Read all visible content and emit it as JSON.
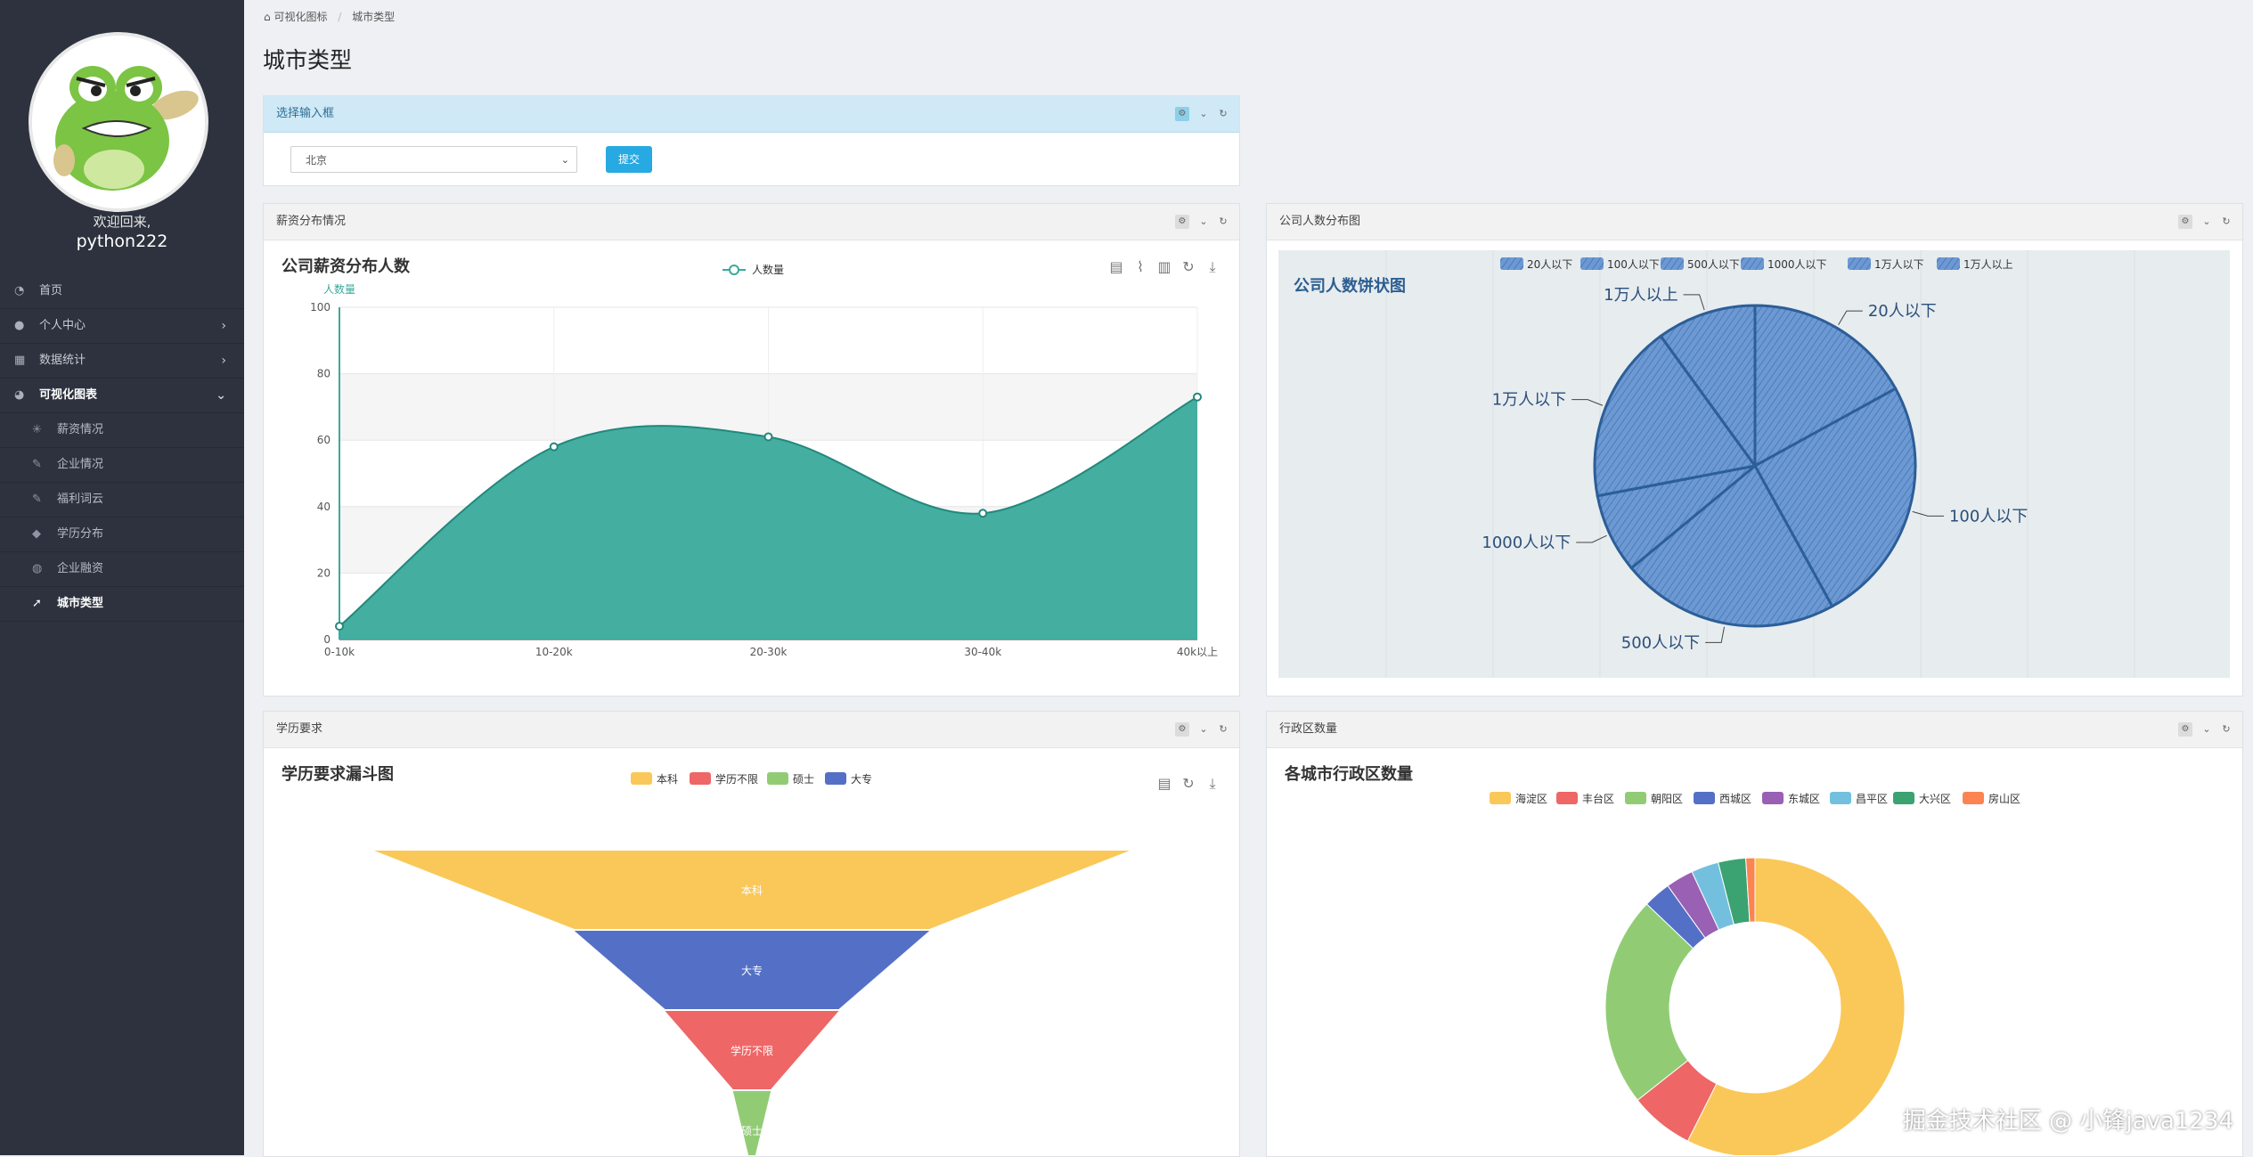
{
  "sidebar": {
    "welcome": "欢迎回来,",
    "username": "python222",
    "items": [
      {
        "label": "首页",
        "icon": "dashboard-icon"
      },
      {
        "label": "个人中心",
        "icon": "user-icon"
      },
      {
        "label": "数据统计",
        "icon": "grid-icon"
      },
      {
        "label": "可视化图表",
        "icon": "pie-icon"
      }
    ],
    "subitems": [
      {
        "label": "薪资情况",
        "icon": "asterisk-icon"
      },
      {
        "label": "企业情况",
        "icon": "feather-icon"
      },
      {
        "label": "福利词云",
        "icon": "feather-icon"
      },
      {
        "label": "学历分布",
        "icon": "graduation-cap-icon"
      },
      {
        "label": "企业融资",
        "icon": "globe-icon"
      },
      {
        "label": "城市类型",
        "icon": "rocket-icon"
      }
    ]
  },
  "breadcrumb": {
    "home": "可视化图标",
    "current": "城市类型"
  },
  "page_title": "城市类型",
  "select_panel": {
    "title": "选择输入框",
    "selected": "北京",
    "submit": "提交"
  },
  "panels": {
    "salary": "薪资分布情况",
    "company": "公司人数分布图",
    "education": "学历要求",
    "district": "行政区数量"
  },
  "watermark": "掘金技术社区 @ 小锋java1234",
  "colors": {
    "sidebar": "#2d323e",
    "accent": "#27a9e1",
    "area": "#3aaa9c",
    "pie": "#5f8fcf",
    "funnel": [
      "#fac858",
      "#5470c6",
      "#ee6666",
      "#91cc75"
    ],
    "donut": [
      "#fac858",
      "#ee6666",
      "#91cc75",
      "#5470c6",
      "#9a60b4",
      "#73c0de",
      "#3ba272",
      "#fc8452"
    ]
  },
  "chart_data": [
    {
      "type": "area",
      "title": "公司薪资分布人数",
      "legend": [
        "人数量"
      ],
      "ylabel": "人数量",
      "categories": [
        "0-10k",
        "10-20k",
        "20-30k",
        "30-40k",
        "40k以上"
      ],
      "series": [
        {
          "name": "人数量",
          "values": [
            4,
            58,
            61,
            38,
            73
          ]
        }
      ],
      "ylim": [
        0,
        100
      ],
      "yticks": [
        0,
        20,
        40,
        60,
        80,
        100
      ],
      "grid": true
    },
    {
      "type": "pie",
      "title": "公司人数饼状图",
      "legend": [
        "20人以下",
        "100人以下",
        "500人以下",
        "1000人以下",
        "1万人以下",
        "1万人以上"
      ],
      "values": [
        17,
        25,
        22,
        8,
        18,
        10
      ]
    },
    {
      "type": "funnel",
      "title": "学历要求漏斗图",
      "legend": [
        "本科",
        "学历不限",
        "硕士",
        "大专"
      ],
      "stages": [
        {
          "name": "本科",
          "value": 100
        },
        {
          "name": "大专",
          "value": 47
        },
        {
          "name": "学历不限",
          "value": 23
        },
        {
          "name": "硕士",
          "value": 5
        }
      ]
    },
    {
      "type": "pie",
      "subtype": "donut",
      "title": "各城市行政区数量",
      "legend": [
        "海淀区",
        "丰台区",
        "朝阳区",
        "西城区",
        "东城区",
        "昌平区",
        "大兴区",
        "房山区"
      ],
      "values": [
        58,
        7,
        23,
        3,
        3,
        3,
        3,
        1
      ]
    }
  ]
}
